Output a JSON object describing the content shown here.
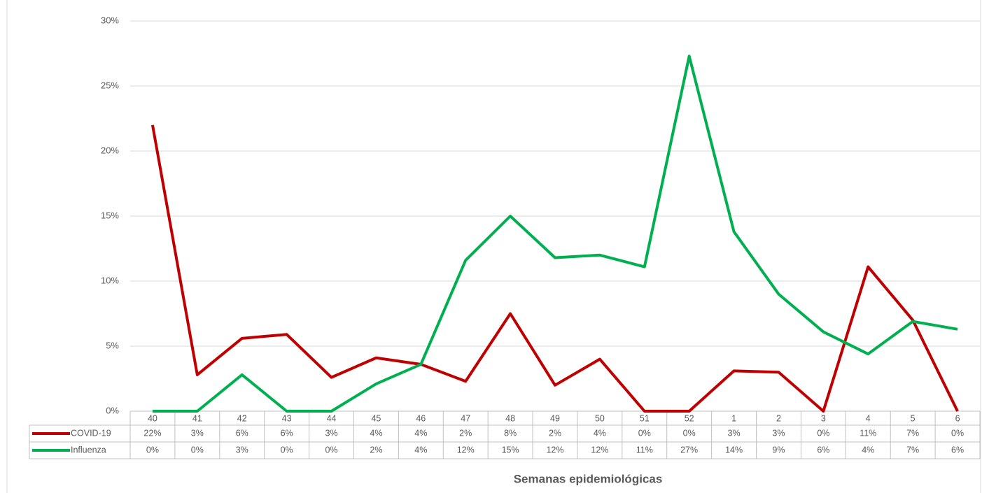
{
  "chart_data": {
    "type": "line",
    "x_label": "Semanas epidemiológicas",
    "categories": [
      "40",
      "41",
      "42",
      "43",
      "44",
      "45",
      "46",
      "47",
      "48",
      "49",
      "50",
      "51",
      "52",
      "1",
      "2",
      "3",
      "4",
      "5",
      "6"
    ],
    "series": [
      {
        "name": "COVID-19",
        "color": "#c00000",
        "values": [
          22,
          2.8,
          5.6,
          5.9,
          2.6,
          4.1,
          3.6,
          2.3,
          7.5,
          2,
          4,
          0,
          0,
          3.1,
          3,
          0,
          11.1,
          7,
          0
        ],
        "value_labels": [
          "22%",
          "3%",
          "6%",
          "6%",
          "3%",
          "4%",
          "4%",
          "2%",
          "8%",
          "2%",
          "4%",
          "0%",
          "0%",
          "3%",
          "3%",
          "0%",
          "11%",
          "7%",
          "0%"
        ]
      },
      {
        "name": "Influenza",
        "color": "#00b050",
        "values": [
          0,
          0,
          2.8,
          0,
          0,
          2.1,
          3.6,
          11.6,
          15,
          11.8,
          12,
          11.1,
          27.3,
          13.8,
          9,
          6.1,
          4.4,
          6.9,
          6.3
        ],
        "value_labels": [
          "0%",
          "0%",
          "3%",
          "0%",
          "0%",
          "2%",
          "4%",
          "12%",
          "15%",
          "12%",
          "12%",
          "11%",
          "27%",
          "14%",
          "9%",
          "6%",
          "4%",
          "7%",
          "6%"
        ]
      }
    ],
    "ylim": [
      0,
      30
    ],
    "yticks": [
      {
        "value": 0,
        "label": "0%"
      },
      {
        "value": 5,
        "label": "5%"
      },
      {
        "value": 10,
        "label": "10%"
      },
      {
        "value": 15,
        "label": "15%"
      },
      {
        "value": 20,
        "label": "20%"
      },
      {
        "value": 25,
        "label": "25%"
      },
      {
        "value": 30,
        "label": "30%"
      }
    ],
    "grid": true
  }
}
